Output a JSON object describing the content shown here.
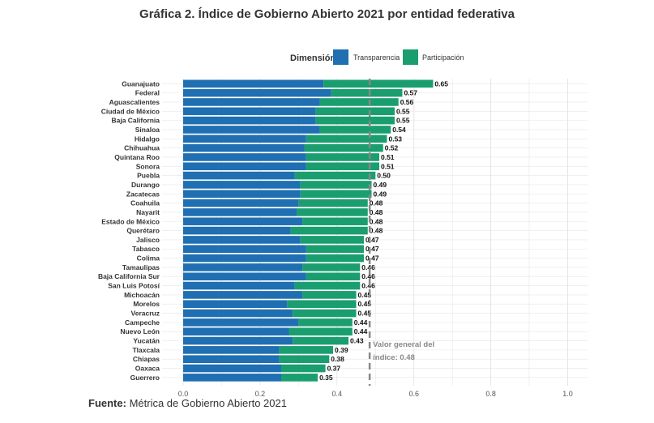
{
  "title": "Gráfica 2. Índice de Gobierno Abierto 2021 por entidad federativa",
  "source": {
    "label": "Fuente:",
    "text": "Métrica de Gobierno Abierto 2021"
  },
  "colors": {
    "transparencia": "#1F6FB2",
    "participacion": "#1A9E70",
    "reference_line": "#888888",
    "grid": "#E6E6E6"
  },
  "chart_data": {
    "type": "bar",
    "orientation": "horizontal",
    "stacked": true,
    "title": "Gráfica 2. Índice de Gobierno Abierto 2021 por entidad federativa",
    "legend": {
      "title": "Dimensión",
      "position": "top",
      "entries": [
        "Transparencia",
        "Participación"
      ]
    },
    "categories": [
      "Guanajuato",
      "Federal",
      "Aguascalientes",
      "Ciudad de México",
      "Baja California",
      "Sinaloa",
      "Hidalgo",
      "Chihuahua",
      "Quintana Roo",
      "Sonora",
      "Puebla",
      "Durango",
      "Zacatecas",
      "Coahuila",
      "Nayarit",
      "Estado de México",
      "Querétaro",
      "Jalisco",
      "Tabasco",
      "Colima",
      "Tamaulipas",
      "Baja California Sur",
      "San Luis Potosí",
      "Michoacán",
      "Morelos",
      "Veracruz",
      "Campeche",
      "Nuevo León",
      "Yucatán",
      "Tlaxcala",
      "Chiapas",
      "Oaxaca",
      "Guerrero"
    ],
    "series": [
      {
        "name": "Transparencia",
        "values": [
          0.365,
          0.385,
          0.355,
          0.345,
          0.345,
          0.355,
          0.32,
          0.315,
          0.32,
          0.32,
          0.29,
          0.305,
          0.305,
          0.3,
          0.295,
          0.31,
          0.28,
          0.305,
          0.32,
          0.32,
          0.31,
          0.32,
          0.29,
          0.31,
          0.27,
          0.285,
          0.3,
          0.275,
          0.285,
          0.25,
          0.25,
          0.255,
          0.255
        ]
      },
      {
        "name": "Participación",
        "values": [
          0.285,
          0.185,
          0.205,
          0.205,
          0.205,
          0.185,
          0.21,
          0.205,
          0.19,
          0.19,
          0.21,
          0.185,
          0.185,
          0.18,
          0.185,
          0.17,
          0.2,
          0.165,
          0.15,
          0.15,
          0.15,
          0.14,
          0.17,
          0.14,
          0.18,
          0.165,
          0.14,
          0.165,
          0.145,
          0.14,
          0.13,
          0.115,
          0.095
        ]
      }
    ],
    "totals": [
      0.65,
      0.57,
      0.56,
      0.55,
      0.55,
      0.54,
      0.53,
      0.52,
      0.51,
      0.51,
      0.5,
      0.49,
      0.49,
      0.48,
      0.48,
      0.48,
      0.48,
      0.47,
      0.47,
      0.47,
      0.46,
      0.46,
      0.46,
      0.45,
      0.45,
      0.45,
      0.44,
      0.44,
      0.43,
      0.39,
      0.38,
      0.37,
      0.35
    ],
    "total_labels": [
      "0.65",
      "0.57",
      "0.56",
      "0.55",
      "0.55",
      "0.54",
      "0.53",
      "0.52",
      "0.51",
      "0.51",
      "0.50",
      "0.49",
      "0.49",
      "0.48",
      "0.48",
      "0.48",
      "0.48",
      "0.47",
      "0.47",
      "0.47",
      "0.46",
      "0.46",
      "0.46",
      "0.45",
      "0.45",
      "0.45",
      "0.44",
      "0.44",
      "0.43",
      "0.39",
      "0.38",
      "0.37",
      "0.35"
    ],
    "xlim": [
      0,
      1.05
    ],
    "xticks": [
      0.0,
      0.2,
      0.4,
      0.6,
      0.8,
      1.0
    ],
    "xtick_labels": [
      "0.0",
      "0.2",
      "0.4",
      "0.6",
      "0.8",
      "1.0"
    ],
    "grid": true,
    "reference_line": {
      "value": 0.485,
      "label_line1": "Valor general del",
      "label_line2": "índice: 0.48"
    }
  }
}
